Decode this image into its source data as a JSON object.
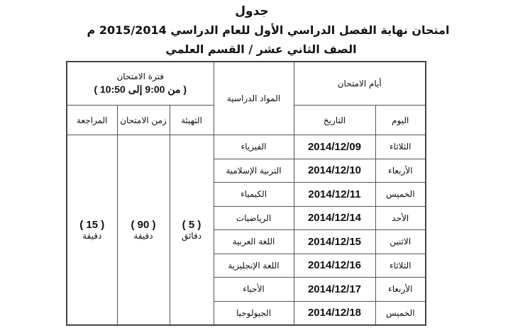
{
  "header": {
    "title": "جدول",
    "subtitle": "امتحان نهاية الفصل الدراسي الأول للعام الدراسي 2015/2014 م",
    "grade": "الصف الثاني عشر / القسم العلمي"
  },
  "table": {
    "exam_days": "أيام الامتحان",
    "day": "اليوم",
    "date": "التاريخ",
    "subjects": "المواد الدراسية",
    "exam_period": "فترة الامتحان",
    "exam_period_time": "( من 9:00  إلى 10:50 )",
    "preparation": "التهيئة",
    "exam_duration": "زمن الامتحان",
    "review": "المراجعة",
    "preparation_value": "( 5 )",
    "preparation_unit": "دقائق",
    "duration_value": "( 90 )",
    "duration_unit": "دقيقة",
    "review_value": "( 15 )",
    "review_unit": "دقيقة",
    "rows": [
      {
        "day": "الثلاثاء",
        "date": "2014/12/09",
        "subject": "الفيزياء"
      },
      {
        "day": "الأربعاء",
        "date": "2014/12/10",
        "subject": "التربية الإسلامية"
      },
      {
        "day": "الخميس",
        "date": "2014/12/11",
        "subject": "الكيمياء"
      },
      {
        "day": "الأحد",
        "date": "2014/12/14",
        "subject": "الرياضيات"
      },
      {
        "day": "الاثنين",
        "date": "2014/12/15",
        "subject": "اللغة العربية"
      },
      {
        "day": "الثلاثاء",
        "date": "2014/12/16",
        "subject": "اللغة الإنجليزية"
      },
      {
        "day": "الأربعاء",
        "date": "2014/12/17",
        "subject": "الأحياء"
      },
      {
        "day": "الخميس",
        "date": "2014/12/18",
        "subject": "الجيولوجيا"
      }
    ]
  }
}
